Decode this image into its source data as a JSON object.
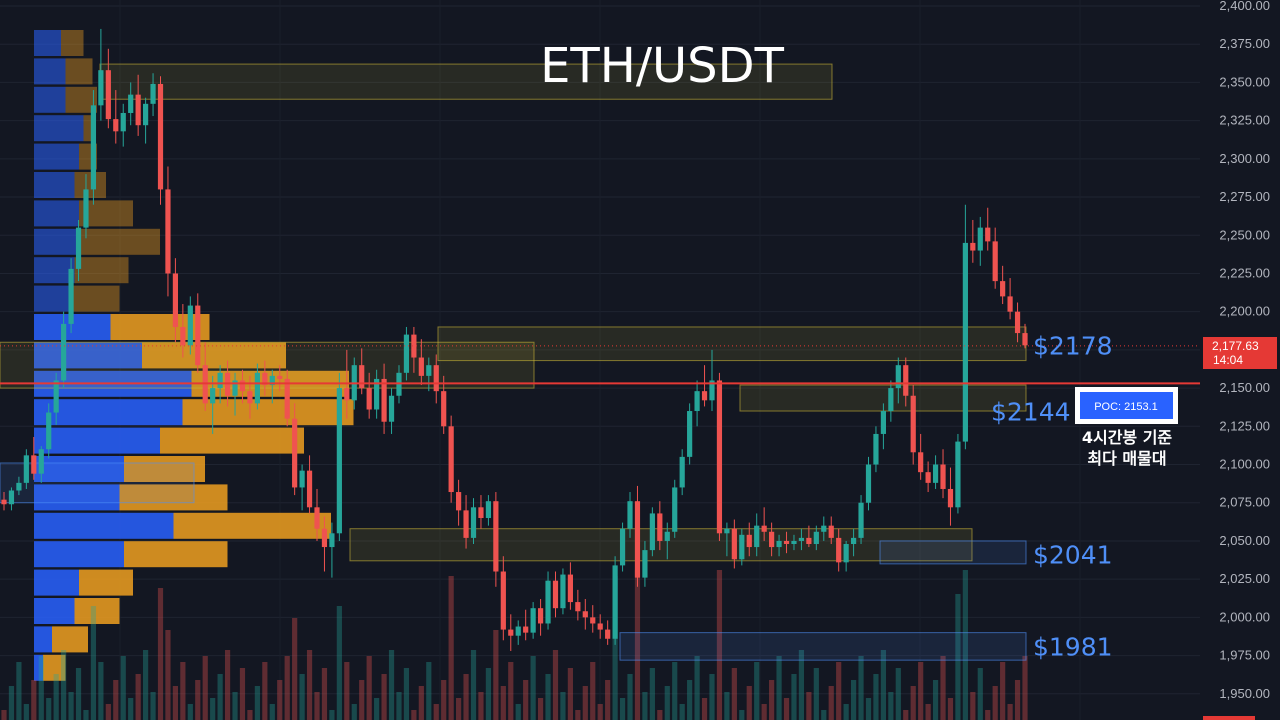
{
  "title": "ETH/USDT",
  "colors": {
    "background": "#131722",
    "up": "#26a69a",
    "down": "#ef5350",
    "profile_blue": "#2962ff",
    "profile_orange": "#f0a020",
    "level_blue": "#4f8ff7",
    "poc_line": "#e53935"
  },
  "chart_data": {
    "type": "candlestick",
    "title": "ETH/USDT",
    "ylim": [
      1940,
      2400
    ],
    "y_ticks": [
      "2,400.00",
      "2,375.00",
      "2,350.00",
      "2,325.00",
      "2,300.00",
      "2,275.00",
      "2,250.00",
      "2,225.00",
      "2,200.00",
      "2,175.00",
      "2,150.00",
      "2,125.00",
      "2,100.00",
      "2,075.00",
      "2,050.00",
      "2,025.00",
      "2,000.00",
      "1,975.00",
      "1,950.00"
    ],
    "last_price": "2,177.63",
    "countdown": "14:04",
    "poc": {
      "label": "POC: 2153.1",
      "value": 2153.1
    },
    "annotation": [
      "4시간봉 기준",
      "최다 매물대"
    ],
    "levels": [
      {
        "label": "$2178",
        "value": 2178
      },
      {
        "label": "$2144",
        "value": 2144
      },
      {
        "label": "$2041",
        "value": 2041
      },
      {
        "label": "$1981",
        "value": 1981
      }
    ],
    "candles": [
      [
        2077,
        2082,
        2070,
        2074
      ],
      [
        2074,
        2085,
        2070,
        2083
      ],
      [
        2083,
        2092,
        2080,
        2088
      ],
      [
        2088,
        2110,
        2084,
        2106
      ],
      [
        2106,
        2118,
        2090,
        2094
      ],
      [
        2094,
        2112,
        2088,
        2110
      ],
      [
        2110,
        2140,
        2104,
        2134
      ],
      [
        2134,
        2160,
        2126,
        2155
      ],
      [
        2155,
        2200,
        2150,
        2192
      ],
      [
        2192,
        2235,
        2186,
        2228
      ],
      [
        2228,
        2260,
        2220,
        2255
      ],
      [
        2255,
        2290,
        2248,
        2280
      ],
      [
        2280,
        2345,
        2270,
        2335
      ],
      [
        2335,
        2385,
        2325,
        2358
      ],
      [
        2358,
        2372,
        2320,
        2326
      ],
      [
        2326,
        2345,
        2310,
        2318
      ],
      [
        2318,
        2336,
        2308,
        2330
      ],
      [
        2330,
        2350,
        2322,
        2342
      ],
      [
        2342,
        2355,
        2315,
        2322
      ],
      [
        2322,
        2340,
        2310,
        2336
      ],
      [
        2336,
        2356,
        2328,
        2349
      ],
      [
        2349,
        2354,
        2270,
        2280
      ],
      [
        2280,
        2295,
        2210,
        2225
      ],
      [
        2225,
        2235,
        2180,
        2190
      ],
      [
        2190,
        2205,
        2170,
        2178
      ],
      [
        2178,
        2210,
        2172,
        2204
      ],
      [
        2204,
        2212,
        2160,
        2165
      ],
      [
        2165,
        2180,
        2135,
        2140
      ],
      [
        2140,
        2158,
        2120,
        2150
      ],
      [
        2150,
        2165,
        2140,
        2160
      ],
      [
        2160,
        2168,
        2138,
        2145
      ],
      [
        2145,
        2160,
        2132,
        2155
      ],
      [
        2155,
        2162,
        2140,
        2148
      ],
      [
        2148,
        2158,
        2130,
        2140
      ],
      [
        2140,
        2166,
        2136,
        2160
      ],
      [
        2160,
        2168,
        2145,
        2152
      ],
      [
        2152,
        2162,
        2140,
        2158
      ],
      [
        2158,
        2165,
        2148,
        2156
      ],
      [
        2156,
        2162,
        2125,
        2130
      ],
      [
        2130,
        2140,
        2080,
        2085
      ],
      [
        2085,
        2100,
        2070,
        2096
      ],
      [
        2096,
        2106,
        2068,
        2072
      ],
      [
        2072,
        2084,
        2050,
        2058
      ],
      [
        2058,
        2066,
        2030,
        2046
      ],
      [
        2046,
        2062,
        2026,
        2055
      ],
      [
        2055,
        2160,
        2050,
        2150
      ],
      [
        2150,
        2175,
        2130,
        2142
      ],
      [
        2142,
        2170,
        2136,
        2165
      ],
      [
        2165,
        2176,
        2146,
        2150
      ],
      [
        2150,
        2160,
        2130,
        2136
      ],
      [
        2136,
        2162,
        2130,
        2156
      ],
      [
        2156,
        2166,
        2120,
        2128
      ],
      [
        2128,
        2150,
        2120,
        2145
      ],
      [
        2145,
        2165,
        2140,
        2160
      ],
      [
        2160,
        2190,
        2155,
        2185
      ],
      [
        2185,
        2190,
        2160,
        2170
      ],
      [
        2170,
        2182,
        2152,
        2158
      ],
      [
        2158,
        2170,
        2148,
        2165
      ],
      [
        2165,
        2172,
        2140,
        2148
      ],
      [
        2148,
        2158,
        2120,
        2125
      ],
      [
        2125,
        2132,
        2075,
        2082
      ],
      [
        2082,
        2090,
        2060,
        2070
      ],
      [
        2070,
        2080,
        2045,
        2052
      ],
      [
        2052,
        2078,
        2048,
        2072
      ],
      [
        2072,
        2080,
        2058,
        2065
      ],
      [
        2065,
        2080,
        2060,
        2076
      ],
      [
        2076,
        2082,
        2020,
        2030
      ],
      [
        2030,
        2040,
        1985,
        1992
      ],
      [
        1992,
        2002,
        1978,
        1988
      ],
      [
        1988,
        1998,
        1982,
        1994
      ],
      [
        1994,
        2005,
        1985,
        1990
      ],
      [
        1990,
        2010,
        1986,
        2006
      ],
      [
        2006,
        2012,
        1988,
        1996
      ],
      [
        1996,
        2030,
        1992,
        2024
      ],
      [
        2024,
        2030,
        2000,
        2006
      ],
      [
        2006,
        2032,
        2002,
        2028
      ],
      [
        2028,
        2036,
        2005,
        2010
      ],
      [
        2010,
        2018,
        1998,
        2004
      ],
      [
        2004,
        2012,
        1992,
        2000
      ],
      [
        2000,
        2008,
        1990,
        1996
      ],
      [
        1996,
        2002,
        1986,
        1992
      ],
      [
        1992,
        1998,
        1982,
        1986
      ],
      [
        1986,
        2040,
        1982,
        2034
      ],
      [
        2034,
        2062,
        2030,
        2058
      ],
      [
        2058,
        2082,
        2052,
        2076
      ],
      [
        2076,
        2086,
        2020,
        2026
      ],
      [
        2026,
        2050,
        2020,
        2044
      ],
      [
        2044,
        2072,
        2040,
        2068
      ],
      [
        2068,
        2076,
        2044,
        2050
      ],
      [
        2050,
        2062,
        2038,
        2056
      ],
      [
        2056,
        2090,
        2052,
        2085
      ],
      [
        2085,
        2110,
        2080,
        2105
      ],
      [
        2105,
        2140,
        2100,
        2135
      ],
      [
        2135,
        2155,
        2125,
        2148
      ],
      [
        2148,
        2165,
        2138,
        2142
      ],
      [
        2142,
        2175,
        2135,
        2155
      ],
      [
        2155,
        2160,
        2050,
        2055
      ],
      [
        2055,
        2062,
        2040,
        2058
      ],
      [
        2058,
        2064,
        2032,
        2038
      ],
      [
        2038,
        2058,
        2034,
        2054
      ],
      [
        2054,
        2062,
        2040,
        2046
      ],
      [
        2046,
        2068,
        2040,
        2060
      ],
      [
        2060,
        2072,
        2050,
        2056
      ],
      [
        2056,
        2062,
        2040,
        2046
      ],
      [
        2046,
        2054,
        2040,
        2050
      ],
      [
        2050,
        2056,
        2042,
        2048
      ],
      [
        2048,
        2054,
        2044,
        2050
      ],
      [
        2050,
        2058,
        2044,
        2052
      ],
      [
        2052,
        2060,
        2046,
        2048
      ],
      [
        2048,
        2060,
        2044,
        2056
      ],
      [
        2056,
        2066,
        2050,
        2060
      ],
      [
        2060,
        2066,
        2048,
        2052
      ],
      [
        2052,
        2058,
        2030,
        2036
      ],
      [
        2036,
        2050,
        2030,
        2048
      ],
      [
        2048,
        2058,
        2040,
        2052
      ],
      [
        2052,
        2080,
        2048,
        2075
      ],
      [
        2075,
        2105,
        2070,
        2100
      ],
      [
        2100,
        2125,
        2095,
        2120
      ],
      [
        2120,
        2140,
        2110,
        2135
      ],
      [
        2135,
        2155,
        2128,
        2150
      ],
      [
        2150,
        2170,
        2140,
        2165
      ],
      [
        2165,
        2170,
        2138,
        2145
      ],
      [
        2145,
        2152,
        2100,
        2108
      ],
      [
        2108,
        2120,
        2090,
        2095
      ],
      [
        2095,
        2102,
        2082,
        2088
      ],
      [
        2088,
        2106,
        2084,
        2100
      ],
      [
        2100,
        2110,
        2078,
        2084
      ],
      [
        2084,
        2098,
        2060,
        2072
      ],
      [
        2072,
        2120,
        2068,
        2115
      ],
      [
        2115,
        2270,
        2110,
        2245
      ],
      [
        2245,
        2260,
        2232,
        2240
      ],
      [
        2240,
        2262,
        2230,
        2255
      ],
      [
        2255,
        2268,
        2240,
        2246
      ],
      [
        2246,
        2255,
        2215,
        2220
      ],
      [
        2220,
        2230,
        2205,
        2210
      ],
      [
        2210,
        2222,
        2195,
        2200
      ],
      [
        2200,
        2206,
        2180,
        2186
      ],
      [
        2186,
        2192,
        2176,
        2178
      ]
    ]
  }
}
